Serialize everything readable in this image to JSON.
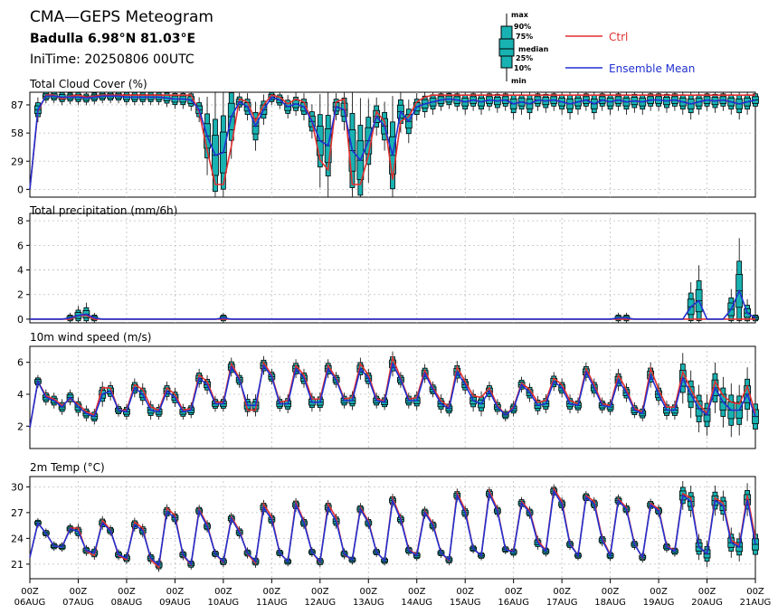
{
  "header": {
    "title": "CMA—GEPS Meteogram",
    "location": "Badulla 6.98°N 81.03°E",
    "init": "IniTime: 20250806 00UTC"
  },
  "legend": {
    "box_labels": [
      "max",
      "90%",
      "75%",
      "median",
      "25%",
      "10%",
      "min"
    ],
    "ctrl_label": "Ctrl",
    "mean_label": "Ensemble Mean",
    "ctrl_color": "#e03030",
    "mean_color": "#2030d0",
    "box_color": "#19b2b2"
  },
  "time_axis": {
    "hour_label": "00Z",
    "date_labels": [
      "06AUG",
      "07AUG",
      "08AUG",
      "09AUG",
      "10AUG",
      "11AUG",
      "12AUG",
      "13AUG",
      "14AUG",
      "15AUG",
      "16AUG",
      "17AUG",
      "18AUG",
      "19AUG",
      "20AUG",
      "21AUG"
    ]
  },
  "chart_data": [
    {
      "type": "line",
      "title": "Total Cloud Cover (%)",
      "ylim": [
        -8,
        100
      ],
      "yticks": [
        0,
        29,
        58,
        87
      ],
      "x_step_hours": 6,
      "series": [
        {
          "name": "Ctrl",
          "values": [
            0,
            80,
            97,
            97,
            93,
            96,
            97,
            95,
            96,
            97,
            97,
            97,
            97,
            97,
            97,
            97,
            97,
            97,
            97,
            97,
            97,
            80,
            40,
            5,
            5,
            45,
            93,
            90,
            70,
            87,
            97,
            95,
            88,
            93,
            90,
            70,
            30,
            20,
            90,
            93,
            5,
            5,
            35,
            80,
            70,
            10,
            70,
            75,
            90,
            95,
            97,
            97,
            97,
            97,
            97,
            97,
            97,
            97,
            97,
            97,
            97,
            97,
            97,
            97,
            97,
            97,
            97,
            97,
            97,
            97,
            97,
            97,
            97,
            97,
            97,
            97,
            97,
            97,
            97,
            97,
            97,
            97,
            97,
            97,
            97,
            97,
            97,
            97,
            97,
            97,
            97
          ]
        },
        {
          "name": "Ensemble Mean",
          "values": [
            0,
            82,
            96,
            96,
            95,
            95,
            95,
            94,
            95,
            96,
            96,
            96,
            95,
            95,
            95,
            95,
            95,
            94,
            93,
            93,
            92,
            82,
            55,
            35,
            38,
            75,
            90,
            85,
            65,
            82,
            95,
            92,
            85,
            88,
            85,
            70,
            50,
            45,
            85,
            82,
            40,
            30,
            50,
            75,
            65,
            35,
            80,
            70,
            85,
            88,
            90,
            92,
            93,
            92,
            90,
            92,
            90,
            92,
            91,
            92,
            88,
            90,
            88,
            92,
            91,
            92,
            90,
            88,
            90,
            92,
            88,
            92,
            90,
            92,
            90,
            91,
            90,
            92,
            92,
            91,
            92,
            90,
            88,
            90,
            92,
            91,
            92,
            90,
            88,
            90,
            92
          ]
        }
      ]
    },
    {
      "type": "line",
      "title": "Total precipitation (mm/6h)",
      "ylim": [
        -0.3,
        8.6
      ],
      "yticks": [
        0,
        2,
        4,
        6,
        8
      ],
      "x_step_hours": 6,
      "series": [
        {
          "name": "Ctrl",
          "values": [
            0,
            0,
            0,
            0,
            0,
            0,
            0.3,
            0.3,
            0,
            0,
            0,
            0,
            0,
            0,
            0,
            0,
            0,
            0,
            0,
            0,
            0,
            0,
            0,
            0,
            0,
            0,
            0,
            0,
            0,
            0,
            0,
            0,
            0,
            0,
            0,
            0,
            0,
            0,
            0,
            0,
            0,
            0,
            0,
            0,
            0,
            0,
            0,
            0,
            0,
            0,
            0,
            0,
            0,
            0,
            0,
            0,
            0,
            0,
            0,
            0,
            0,
            0,
            0,
            0,
            0,
            0,
            0,
            0,
            0,
            0,
            0,
            0,
            0,
            0,
            0,
            0,
            0,
            0,
            0,
            0,
            0,
            0,
            0,
            0,
            0,
            0,
            0,
            0,
            0,
            0,
            0
          ]
        },
        {
          "name": "Ensemble Mean",
          "values": [
            0,
            0,
            0,
            0,
            0,
            0.1,
            0.3,
            0.4,
            0.1,
            0,
            0,
            0,
            0,
            0,
            0,
            0,
            0,
            0,
            0,
            0,
            0,
            0,
            0,
            0,
            0.1,
            0,
            0,
            0,
            0,
            0,
            0,
            0,
            0,
            0,
            0,
            0,
            0,
            0,
            0,
            0,
            0,
            0,
            0,
            0,
            0,
            0,
            0,
            0,
            0,
            0,
            0,
            0,
            0,
            0,
            0,
            0,
            0,
            0,
            0,
            0,
            0,
            0,
            0,
            0,
            0,
            0,
            0,
            0,
            0,
            0,
            0,
            0,
            0,
            0.1,
            0.1,
            0,
            0,
            0,
            0,
            0,
            0,
            0,
            1.0,
            1.5,
            0,
            0,
            0,
            0.8,
            2.3,
            0.5,
            0.1
          ]
        }
      ]
    },
    {
      "type": "line",
      "title": "10m wind speed (m/s)",
      "ylim": [
        0.6,
        7.0
      ],
      "yticks": [
        2,
        4,
        6
      ],
      "x_step_hours": 6,
      "series": [
        {
          "name": "Ctrl",
          "values": [
            1.9,
            4.8,
            3.9,
            3.7,
            3.3,
            3.7,
            3.4,
            2.9,
            2.7,
            4.4,
            4.4,
            3.0,
            3.0,
            4.6,
            4.3,
            3.2,
            3.0,
            4.4,
            4.0,
            3.0,
            3.1,
            5.2,
            4.8,
            3.5,
            3.5,
            5.9,
            5.0,
            3.0,
            3.0,
            6.0,
            5.2,
            3.5,
            3.6,
            5.8,
            5.2,
            3.7,
            3.7,
            5.8,
            5.0,
            3.7,
            3.8,
            5.9,
            5.2,
            3.7,
            3.6,
            6.3,
            5.0,
            3.7,
            3.8,
            5.5,
            4.4,
            3.6,
            3.2,
            5.7,
            4.8,
            3.9,
            3.8,
            4.4,
            3.3,
            2.7,
            3.2,
            4.7,
            4.3,
            3.5,
            3.6,
            5.0,
            4.6,
            3.6,
            3.4,
            5.6,
            4.6,
            3.4,
            3.3,
            5.2,
            4.3,
            3.1,
            2.9,
            5.6,
            4.3,
            3.2,
            3.2,
            5.4,
            4.3,
            3.4,
            2.8,
            4.8,
            3.9,
            3.5,
            3.4,
            4.5,
            2.8
          ]
        },
        {
          "name": "Ensemble Mean",
          "values": [
            1.9,
            4.8,
            3.8,
            3.6,
            3.2,
            3.8,
            3.2,
            2.8,
            2.6,
            4.0,
            4.2,
            3.0,
            2.9,
            4.4,
            4.0,
            3.0,
            2.9,
            4.2,
            3.8,
            2.9,
            3.0,
            5.0,
            4.6,
            3.4,
            3.4,
            5.7,
            4.9,
            3.3,
            3.3,
            5.8,
            5.1,
            3.4,
            3.4,
            5.6,
            5.0,
            3.5,
            3.5,
            5.6,
            4.9,
            3.6,
            3.6,
            5.6,
            5.0,
            3.6,
            3.5,
            5.9,
            4.9,
            3.6,
            3.6,
            5.3,
            4.3,
            3.4,
            3.1,
            5.4,
            4.6,
            3.6,
            3.4,
            4.2,
            3.2,
            2.7,
            3.1,
            4.6,
            4.1,
            3.3,
            3.4,
            4.8,
            4.4,
            3.4,
            3.3,
            5.4,
            4.4,
            3.3,
            3.2,
            4.9,
            4.1,
            3.0,
            2.8,
            5.2,
            4.0,
            3.0,
            3.0,
            5.0,
            4.0,
            3.1,
            2.7,
            4.4,
            3.5,
            3.0,
            3.0,
            4.0,
            2.6
          ]
        }
      ]
    },
    {
      "type": "line",
      "title": "2m Temp (°C)",
      "ylim": [
        19.3,
        31.2
      ],
      "yticks": [
        21,
        24,
        27,
        30
      ],
      "x_step_hours": 6,
      "series": [
        {
          "name": "Ctrl",
          "values": [
            21.8,
            25.8,
            24.6,
            23.1,
            23.0,
            25.2,
            25.2,
            22.5,
            22.0,
            26.1,
            25.0,
            22.0,
            21.5,
            25.9,
            25.2,
            21.5,
            20.6,
            27.5,
            26.7,
            22.0,
            20.9,
            27.4,
            25.6,
            22.2,
            21.2,
            26.5,
            24.9,
            22.2,
            21.1,
            28.0,
            26.5,
            22.3,
            21.3,
            28.2,
            26.0,
            22.4,
            21.2,
            28.0,
            26.4,
            22.1,
            21.5,
            27.6,
            26.0,
            22.4,
            21.4,
            28.7,
            26.4,
            22.7,
            22.1,
            27.2,
            25.7,
            22.3,
            21.4,
            29.3,
            27.3,
            22.8,
            22.0,
            29.5,
            27.4,
            22.7,
            22.5,
            28.3,
            27.2,
            23.8,
            22.6,
            29.8,
            28.3,
            23.4,
            22.0,
            29.0,
            28.3,
            24.0,
            22.1,
            28.6,
            27.6,
            23.4,
            21.7,
            28.1,
            27.4,
            23.1,
            22.6,
            29.2,
            28.7,
            23.0,
            22.2,
            28.7,
            28.1,
            23.8,
            23.2,
            29.0,
            24.0
          ]
        },
        {
          "name": "Ensemble Mean",
          "values": [
            21.8,
            25.8,
            24.6,
            23.1,
            23.0,
            25.1,
            24.8,
            22.6,
            22.3,
            25.8,
            24.9,
            22.1,
            21.7,
            25.6,
            24.9,
            21.7,
            20.9,
            27.1,
            26.4,
            22.1,
            21.0,
            27.2,
            25.4,
            22.2,
            21.3,
            26.3,
            24.7,
            22.3,
            21.3,
            27.6,
            26.2,
            22.3,
            21.3,
            27.9,
            25.8,
            22.4,
            21.3,
            27.6,
            26.0,
            22.2,
            21.5,
            27.4,
            25.8,
            22.4,
            21.4,
            28.4,
            26.2,
            22.6,
            22.0,
            27.0,
            25.5,
            22.3,
            21.5,
            29.0,
            27.0,
            22.8,
            22.0,
            29.2,
            27.2,
            22.7,
            22.4,
            28.1,
            27.0,
            23.5,
            22.5,
            29.5,
            28.0,
            23.3,
            22.0,
            28.8,
            28.0,
            23.8,
            22.0,
            28.4,
            27.4,
            23.3,
            21.8,
            27.9,
            27.2,
            23.0,
            22.5,
            29.0,
            28.3,
            23.0,
            22.2,
            28.4,
            27.8,
            23.5,
            23.0,
            28.5,
            23.3
          ]
        }
      ]
    }
  ]
}
